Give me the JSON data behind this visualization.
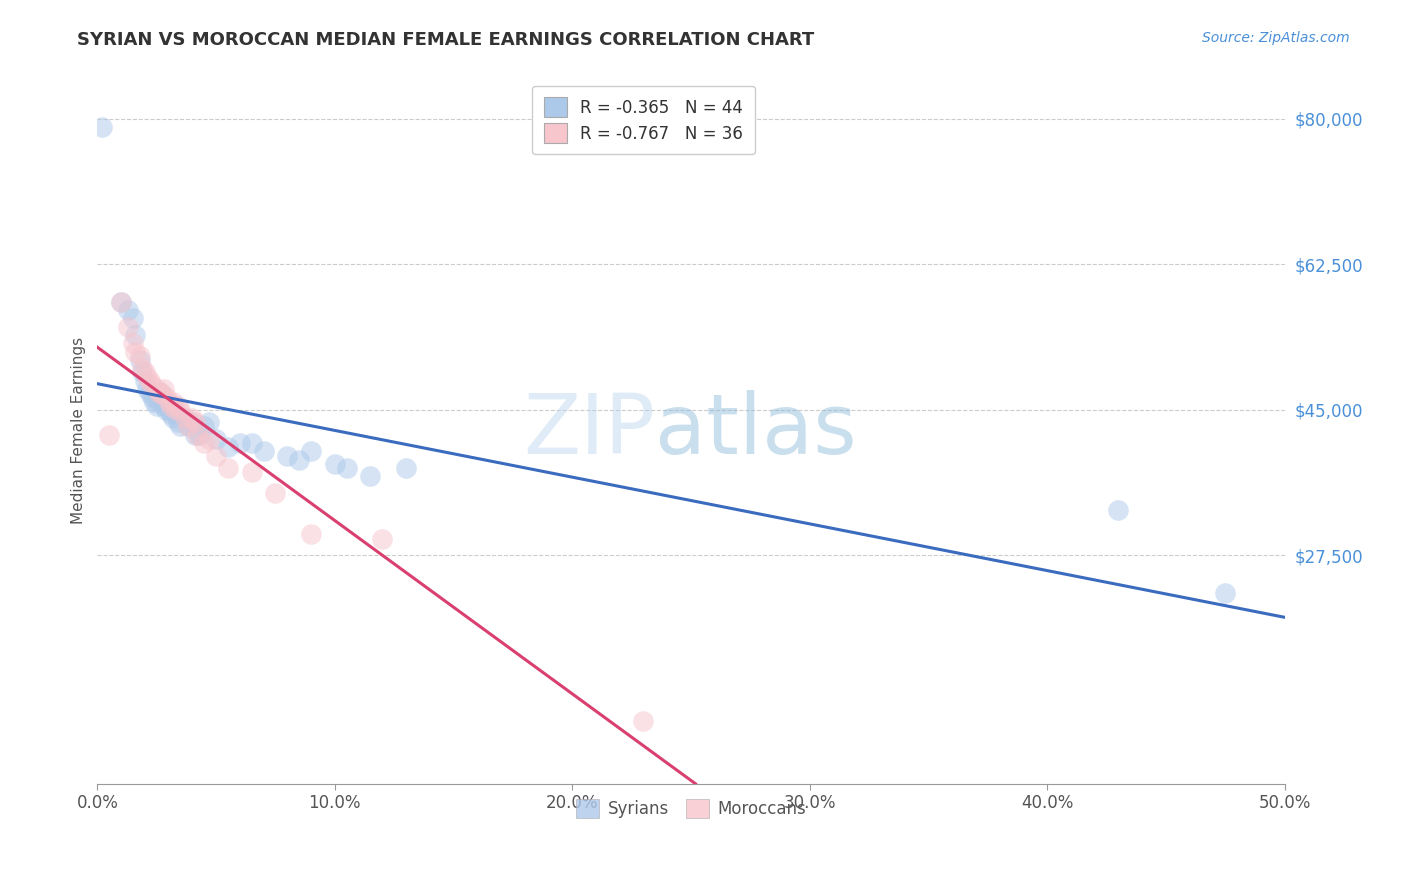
{
  "title": "SYRIAN VS MOROCCAN MEDIAN FEMALE EARNINGS CORRELATION CHART",
  "source": "Source: ZipAtlas.com",
  "ylabel": "Median Female Earnings",
  "xlabel_ticks": [
    "0.0%",
    "10.0%",
    "20.0%",
    "30.0%",
    "40.0%",
    "50.0%"
  ],
  "xlabel_vals": [
    0.0,
    0.1,
    0.2,
    0.3,
    0.4,
    0.5
  ],
  "ytick_labels": [
    "$27,500",
    "$45,000",
    "$62,500",
    "$80,000"
  ],
  "ytick_vals": [
    27500,
    45000,
    62500,
    80000
  ],
  "legend_stats": {
    "syrian": {
      "R": "-0.365",
      "N": "44",
      "color": "#adc9ea"
    },
    "moroccan": {
      "R": "-0.767",
      "N": "36",
      "color": "#f7c5cc"
    }
  },
  "syrian_color": "#adc9ea",
  "moroccan_color": "#f7c5cc",
  "syrian_line_color": "#3a6bbf",
  "moroccan_line_color": "#d94070",
  "syrians_x": [
    0.002,
    0.01,
    0.013,
    0.015,
    0.016,
    0.018,
    0.019,
    0.02,
    0.021,
    0.022,
    0.023,
    0.024,
    0.025,
    0.026,
    0.027,
    0.028,
    0.029,
    0.03,
    0.031,
    0.032,
    0.033,
    0.034,
    0.035,
    0.037,
    0.038,
    0.04,
    0.041,
    0.043,
    0.045,
    0.047,
    0.05,
    0.055,
    0.06,
    0.065,
    0.07,
    0.08,
    0.085,
    0.09,
    0.1,
    0.105,
    0.115,
    0.13,
    0.43,
    0.475
  ],
  "syrians_y": [
    79000,
    58000,
    57000,
    56000,
    54000,
    51000,
    49500,
    48500,
    47500,
    47000,
    46500,
    46000,
    45500,
    46000,
    47000,
    45500,
    45000,
    45000,
    44500,
    44000,
    44500,
    43500,
    43000,
    44000,
    43000,
    43500,
    42000,
    42000,
    43000,
    43500,
    41500,
    40500,
    41000,
    41000,
    40000,
    39500,
    39000,
    40000,
    38500,
    38000,
    37000,
    38000,
    33000,
    23000
  ],
  "moroccans_x": [
    0.005,
    0.01,
    0.013,
    0.015,
    0.016,
    0.018,
    0.019,
    0.02,
    0.021,
    0.022,
    0.023,
    0.025,
    0.026,
    0.027,
    0.028,
    0.029,
    0.03,
    0.031,
    0.032,
    0.033,
    0.034,
    0.035,
    0.037,
    0.038,
    0.04,
    0.041,
    0.042,
    0.045,
    0.047,
    0.05,
    0.055,
    0.065,
    0.075,
    0.09,
    0.12,
    0.23
  ],
  "moroccans_y": [
    42000,
    58000,
    55000,
    53000,
    52000,
    51500,
    50000,
    49500,
    49000,
    48500,
    48000,
    47500,
    47000,
    47000,
    47500,
    46500,
    46000,
    45500,
    46000,
    45000,
    45500,
    45000,
    44000,
    43000,
    44000,
    43500,
    42000,
    41000,
    41500,
    39500,
    38000,
    37500,
    35000,
    30000,
    29500,
    7500
  ],
  "xmin": 0.0,
  "xmax": 0.5,
  "ymin": 0,
  "ymax": 85000,
  "figsize": [
    14.06,
    8.92
  ],
  "dpi": 100
}
